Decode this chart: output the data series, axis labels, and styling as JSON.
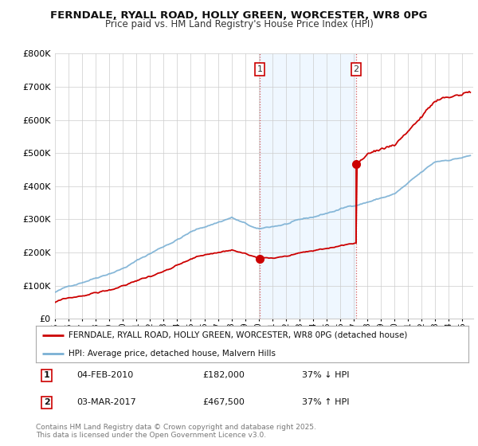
{
  "title_line1": "FERNDALE, RYALL ROAD, HOLLY GREEN, WORCESTER, WR8 0PG",
  "title_line2": "Price paid vs. HM Land Registry's House Price Index (HPI)",
  "ylim": [
    0,
    800000
  ],
  "yticks": [
    0,
    100000,
    200000,
    300000,
    400000,
    500000,
    600000,
    700000,
    800000
  ],
  "ytick_labels": [
    "£0",
    "£100K",
    "£200K",
    "£300K",
    "£400K",
    "£500K",
    "£600K",
    "£700K",
    "£800K"
  ],
  "xlim_start": 1995.0,
  "xlim_end": 2025.8,
  "sale1_year": 2010.09,
  "sale1_price": 182000,
  "sale2_year": 2017.17,
  "sale2_price": 467500,
  "red_color": "#cc0000",
  "blue_color": "#7ab0d4",
  "highlight_fill": "#ddeeff",
  "highlight_alpha": 0.45,
  "legend_red": "FERNDALE, RYALL ROAD, HOLLY GREEN, WORCESTER, WR8 0PG (detached house)",
  "legend_blue": "HPI: Average price, detached house, Malvern Hills",
  "footer": "Contains HM Land Registry data © Crown copyright and database right 2025.\nThis data is licensed under the Open Government Licence v3.0.",
  "bg_color": "#ffffff",
  "grid_color": "#cccccc"
}
